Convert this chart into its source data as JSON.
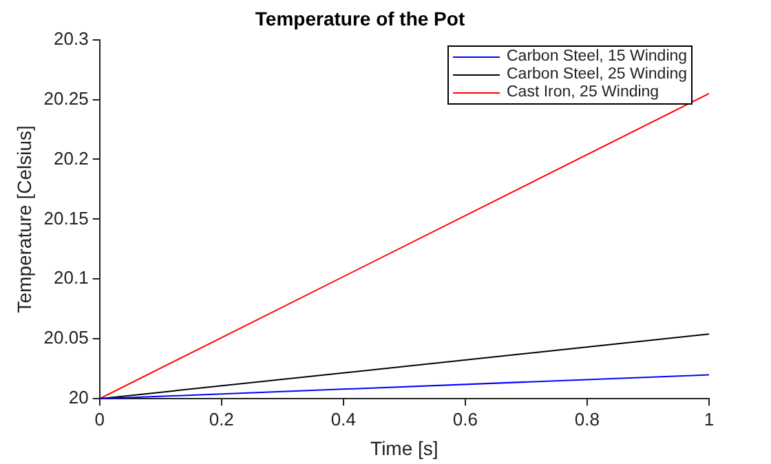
{
  "chart_data": {
    "type": "line",
    "title": "Temperature of the Pot",
    "xlabel": "Time [s]",
    "ylabel": "Temperature [Celsius]",
    "x": [
      0,
      1
    ],
    "series": [
      {
        "name": "Carbon Steel, 15 Winding",
        "color": "#0000ff",
        "values": [
          20,
          20.02
        ]
      },
      {
        "name": "Carbon Steel, 25 Winding",
        "color": "#000000",
        "values": [
          20,
          20.054
        ]
      },
      {
        "name": "Cast Iron, 25 Winding",
        "color": "#ff0000",
        "values": [
          20,
          20.255
        ]
      }
    ],
    "xlim": [
      0,
      1
    ],
    "xticks": [
      0,
      0.2,
      0.4,
      0.6,
      0.8,
      1
    ],
    "ylim": [
      20,
      20.3
    ],
    "yticks": [
      20,
      20.05,
      20.1,
      20.15,
      20.2,
      20.25,
      20.3
    ],
    "legend": "top right",
    "marker": "none",
    "line_style": "solid",
    "grid": false
  }
}
